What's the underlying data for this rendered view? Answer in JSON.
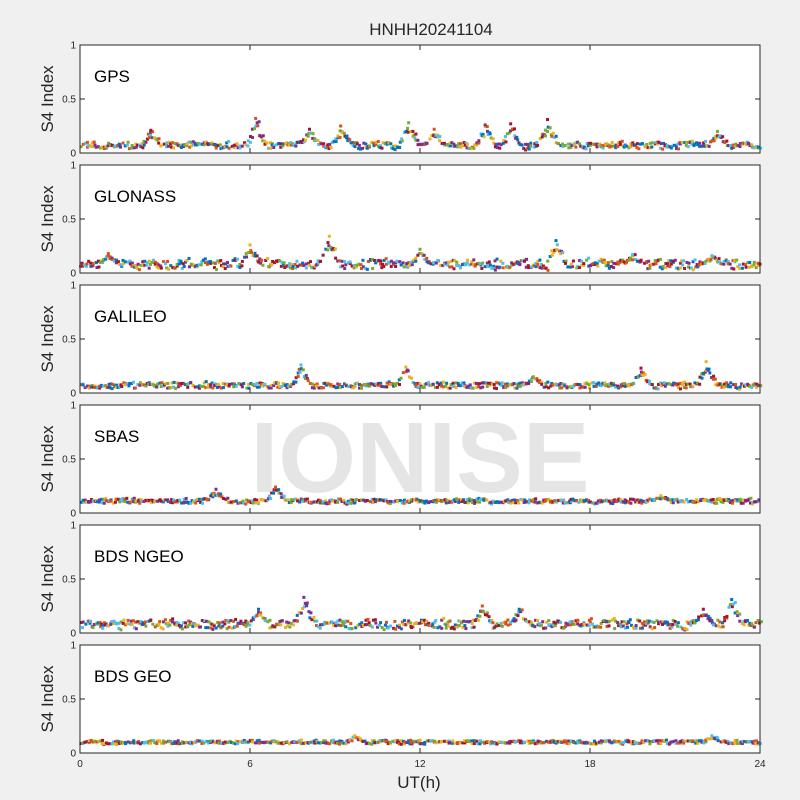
{
  "figure": {
    "title": "HNHH20241104",
    "xlabel": "UT(h)",
    "watermark": "IONISE"
  },
  "colors": {
    "palette": [
      "#0072BD",
      "#D95319",
      "#EDB120",
      "#7E2F8E",
      "#77AC30",
      "#4DBEEE",
      "#A2142F"
    ]
  },
  "chart_data": [
    {
      "type": "scatter",
      "label": "GPS",
      "ylabel": "S4 Index",
      "xlabel": "",
      "xlim": [
        0,
        24
      ],
      "ylim": [
        0,
        1
      ],
      "xticks": [
        0,
        6,
        12,
        18,
        24
      ],
      "yticks": [
        0,
        0.5,
        1
      ],
      "ytick_labels": [
        "0",
        "0.5",
        "1"
      ],
      "baseline_s4": 0.07,
      "spread": 0.03,
      "peaks": [
        {
          "x": 2.5,
          "y": 0.21
        },
        {
          "x": 6.2,
          "y": 0.32
        },
        {
          "x": 8.1,
          "y": 0.22
        },
        {
          "x": 9.2,
          "y": 0.25
        },
        {
          "x": 11.6,
          "y": 0.28
        },
        {
          "x": 12.5,
          "y": 0.22
        },
        {
          "x": 14.3,
          "y": 0.26
        },
        {
          "x": 15.2,
          "y": 0.27
        },
        {
          "x": 16.5,
          "y": 0.31
        },
        {
          "x": 22.5,
          "y": 0.2
        }
      ]
    },
    {
      "type": "scatter",
      "label": "GLONASS",
      "ylabel": "S4 Index",
      "xlabel": "",
      "xlim": [
        0,
        24
      ],
      "ylim": [
        0,
        1
      ],
      "xticks": [
        0,
        6,
        12,
        18,
        24
      ],
      "yticks": [
        0,
        0.5,
        1
      ],
      "ytick_labels": [
        "0",
        "0.5",
        "1"
      ],
      "baseline_s4": 0.08,
      "spread": 0.04,
      "peaks": [
        {
          "x": 1.0,
          "y": 0.18
        },
        {
          "x": 6.0,
          "y": 0.26
        },
        {
          "x": 8.8,
          "y": 0.34
        },
        {
          "x": 12.0,
          "y": 0.22
        },
        {
          "x": 16.8,
          "y": 0.3
        },
        {
          "x": 19.5,
          "y": 0.17
        },
        {
          "x": 22.3,
          "y": 0.16
        }
      ]
    },
    {
      "type": "scatter",
      "label": "GALILEO",
      "ylabel": "S4 Index",
      "xlabel": "",
      "xlim": [
        0,
        24
      ],
      "ylim": [
        0,
        1
      ],
      "xticks": [
        0,
        6,
        12,
        18,
        24
      ],
      "yticks": [
        0,
        0.5,
        1
      ],
      "ytick_labels": [
        "0",
        "0.5",
        "1"
      ],
      "baseline_s4": 0.07,
      "spread": 0.025,
      "peaks": [
        {
          "x": 7.8,
          "y": 0.26
        },
        {
          "x": 11.5,
          "y": 0.24
        },
        {
          "x": 16.0,
          "y": 0.15
        },
        {
          "x": 19.8,
          "y": 0.23
        },
        {
          "x": 22.1,
          "y": 0.29
        }
      ]
    },
    {
      "type": "scatter",
      "label": "SBAS",
      "ylabel": "S4 Index",
      "xlabel": "",
      "xlim": [
        0,
        24
      ],
      "ylim": [
        0,
        1
      ],
      "xticks": [
        0,
        6,
        12,
        18,
        24
      ],
      "yticks": [
        0,
        0.5,
        1
      ],
      "ytick_labels": [
        "0",
        "0.5",
        "1"
      ],
      "baseline_s4": 0.11,
      "spread": 0.02,
      "peaks": [
        {
          "x": 4.8,
          "y": 0.22
        },
        {
          "x": 6.9,
          "y": 0.24
        },
        {
          "x": 20.5,
          "y": 0.16
        }
      ]
    },
    {
      "type": "scatter",
      "label": "BDS NGEO",
      "ylabel": "S4 Index",
      "xlabel": "",
      "xlim": [
        0,
        24
      ],
      "ylim": [
        0,
        1
      ],
      "xticks": [
        0,
        6,
        12,
        18,
        24
      ],
      "yticks": [
        0,
        0.5,
        1
      ],
      "ytick_labels": [
        "0",
        "0.5",
        "1"
      ],
      "baseline_s4": 0.08,
      "spread": 0.04,
      "peaks": [
        {
          "x": 6.3,
          "y": 0.22
        },
        {
          "x": 7.9,
          "y": 0.33
        },
        {
          "x": 14.2,
          "y": 0.25
        },
        {
          "x": 15.5,
          "y": 0.22
        },
        {
          "x": 22.0,
          "y": 0.22
        },
        {
          "x": 23.0,
          "y": 0.31
        }
      ]
    },
    {
      "type": "scatter",
      "label": "BDS GEO",
      "ylabel": "S4 Index",
      "xlabel": "",
      "xlim": [
        0,
        24
      ],
      "ylim": [
        0,
        1
      ],
      "xticks": [
        0,
        6,
        12,
        18,
        24
      ],
      "yticks": [
        0,
        0.5,
        1
      ],
      "ytick_labels": [
        "0",
        "0.5",
        "1"
      ],
      "baseline_s4": 0.1,
      "spread": 0.015,
      "peaks": [
        {
          "x": 9.7,
          "y": 0.16
        },
        {
          "x": 22.3,
          "y": 0.16
        }
      ]
    }
  ]
}
